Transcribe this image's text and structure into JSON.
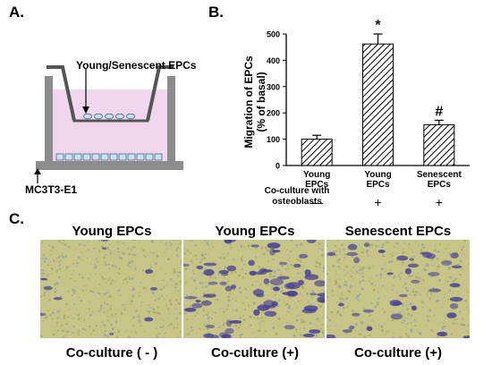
{
  "panel_a": {
    "letter": "A.",
    "cell_label": "Young/Senescent EPCs",
    "bottom_label": "MC3T3-E1"
  },
  "panel_b": {
    "letter": "B.",
    "coculture_label_line1": "Co-culture with",
    "coculture_label_line2": "osteoblasts"
  },
  "panel_c": {
    "letter": "C.",
    "images": [
      {
        "title": "Young EPCs",
        "caption": "Co-culture ( - )"
      },
      {
        "title": "Young EPCs",
        "caption": "Co-culture (+)"
      },
      {
        "title": "Senescent EPCs",
        "caption": "Co-culture (+)"
      }
    ]
  },
  "colors": {
    "well_fill": "#f0d7ee",
    "cell_fill": "#c9e3f0",
    "micro_bg": "#c7c488",
    "micro_stain": "#4b3f93",
    "bar_hatch": "#000000"
  },
  "chart_data": {
    "type": "bar",
    "categories": [
      "Young\nEPCs",
      "Young\nEPCs",
      "Senescent\nEPCs"
    ],
    "values": [
      100,
      462,
      155
    ],
    "errors": [
      15,
      38,
      17
    ],
    "annotations": [
      "",
      "*",
      "#"
    ],
    "coculture": [
      "—",
      "+",
      "+"
    ],
    "ylabel": "Migration of EPCs\n(% of basal)",
    "ylim": [
      0,
      500
    ],
    "yticks": [
      0,
      100,
      200,
      300,
      400,
      500
    ],
    "grid": false
  }
}
